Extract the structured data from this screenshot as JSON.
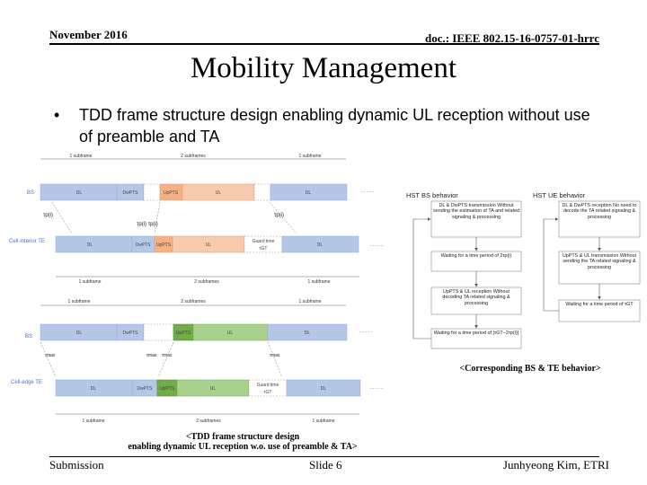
{
  "header": {
    "date": "November 2016",
    "doc": "doc.: IEEE 802.15-16-0757-01-hrrc"
  },
  "title": "Mobility Management",
  "bullet": {
    "marker": "•",
    "text": "TDD frame structure design enabling dynamic UL reception without use of preamble and TA"
  },
  "diagram": {
    "rows": [
      {
        "label": "BS",
        "segments": [
          "DL",
          "DwPTS",
          "UpPTS",
          "UL",
          "DL"
        ],
        "marks": [
          "τp(i)",
          "τp(i)",
          "τp(i) τp(i)"
        ]
      },
      {
        "label": "Cell-interior TE",
        "segments": [
          "DL",
          "DwPTS",
          "UpPTS",
          "UL",
          "Guard time",
          "τGT",
          "DL"
        ]
      },
      {
        "label": "BS",
        "segments": [
          "DL",
          "DwPTS",
          "UpPTS",
          "UL",
          "DL"
        ],
        "marks": [
          "τmax",
          "τmax",
          "τmax",
          "τmax"
        ]
      },
      {
        "label": "Cell-edge TE",
        "segments": [
          "DL",
          "DwPTS",
          "UpPTS",
          "UL",
          "Guard time",
          "τGT",
          "DL"
        ]
      }
    ],
    "spans": [
      "1 subframe",
      "2 subframes",
      "1 subframe",
      "1 subframe",
      "2 subframes",
      "1 subframe",
      "1 subframe",
      "2 subframes",
      "1 subframe",
      "1 subframe",
      "2 subframes",
      "1 subframe"
    ],
    "dots": "- - - - -",
    "caption_line1": "<TDD frame structure design",
    "caption_line2": "enabling dynamic UL reception w.o. use of preamble & TA>"
  },
  "flow": {
    "bs_title": "HST BS behavior",
    "te_title": "HST UE behavior",
    "bs_steps": [
      "DL & DwPTS transmission Without sending the estimation of TA and related signaling & processing",
      "Waiting for a time period of 2τp(i)",
      "UpPTS & UL reception Without decoding TA related signaling & processing",
      "Waiting for a time period of [τGT−2τp(i)]"
    ],
    "te_steps": [
      "DL & DwPTS reception No need to decode the TA related signaling & processing",
      "UpPTS & UL transmission Without sending the TA related signaling & processing",
      "Waiting for a time period of τGT"
    ],
    "caption": "<Corresponding BS & TE behavior>"
  },
  "footer": {
    "left": "Submission",
    "center": "Slide 6",
    "right": "Junhyeong Kim, ETRI"
  }
}
